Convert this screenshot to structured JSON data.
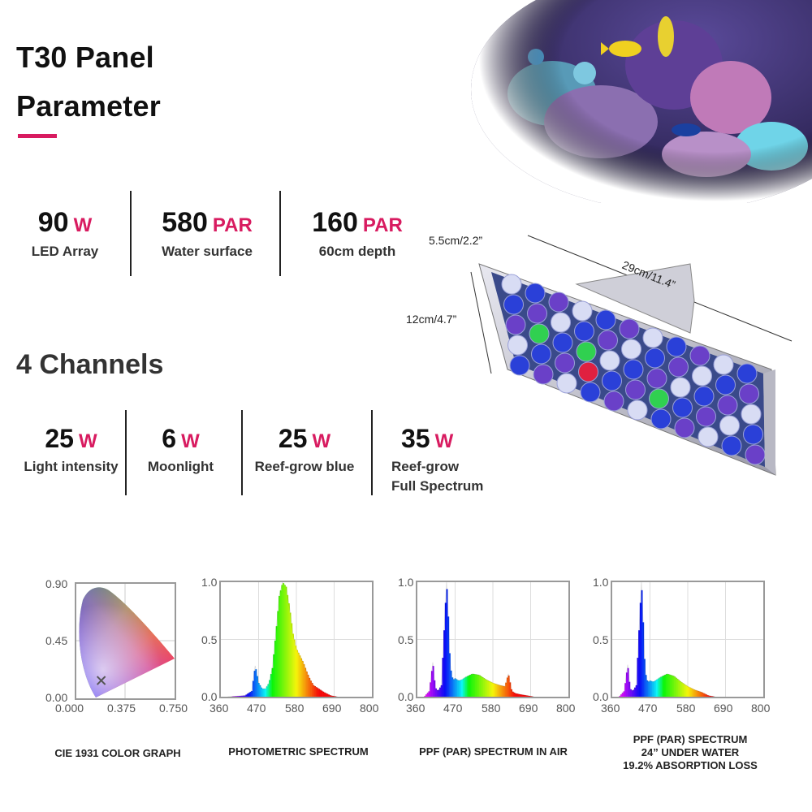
{
  "header": {
    "title_line1": "T30 Panel",
    "title_line2": "Parameter",
    "accent_color": "#d81b60"
  },
  "stats": [
    {
      "value": "90",
      "unit": "W",
      "label": "LED Array"
    },
    {
      "value": "580",
      "unit": "PAR",
      "label": "Water surface"
    },
    {
      "value": "160",
      "unit": "PAR",
      "label": "60cm depth"
    }
  ],
  "dimensions": {
    "width": "29cm/11.4”",
    "height": "12cm/4.7”",
    "depth": "5.5cm/2.2”"
  },
  "channels": {
    "title": "4 Channels",
    "items": [
      {
        "value": "25",
        "unit": "W",
        "label": "Light intensity"
      },
      {
        "value": "6",
        "unit": "W",
        "label": "Moonlight"
      },
      {
        "value": "25",
        "unit": "W",
        "label": "Reef-grow blue"
      },
      {
        "value": "35",
        "unit": "W",
        "label_line1": "Reef-grow",
        "label_line2": "Full Spectrum"
      }
    ]
  },
  "chart_data": [
    {
      "type": "area",
      "caption": "CIE 1931 COLOR GRAPH",
      "x_ticks": [
        "0.000",
        "0.375",
        "0.750"
      ],
      "y_ticks": [
        "0.90",
        "0.45",
        "0.00"
      ],
      "xlim": [
        0,
        0.75
      ],
      "ylim": [
        0,
        0.9
      ],
      "marker": {
        "x": 0.19,
        "y": 0.14
      }
    },
    {
      "type": "area",
      "caption": "PHOTOMETRIC SPECTRUM",
      "x_ticks": [
        "360",
        "470",
        "580",
        "690",
        "800"
      ],
      "y_ticks": [
        "1.0",
        "0.5",
        "0.0"
      ],
      "xlim": [
        360,
        800
      ],
      "ylim": [
        0,
        1
      ],
      "x": [
        380,
        430,
        450,
        460,
        470,
        480,
        490,
        500,
        510,
        520,
        530,
        540,
        550,
        560,
        570,
        580,
        590,
        600,
        610,
        620,
        630,
        640,
        650,
        660,
        680,
        700
      ],
      "y": [
        0,
        0.01,
        0.05,
        0.27,
        0.12,
        0.07,
        0.07,
        0.12,
        0.25,
        0.55,
        0.88,
        1.0,
        0.96,
        0.78,
        0.55,
        0.42,
        0.36,
        0.3,
        0.22,
        0.15,
        0.1,
        0.08,
        0.06,
        0.04,
        0.01,
        0
      ]
    },
    {
      "type": "area",
      "caption": "PPF (PAR) SPECTRUM IN AIR",
      "x_ticks": [
        "360",
        "470",
        "580",
        "690",
        "800"
      ],
      "y_ticks": [
        "1.0",
        "0.5",
        "0.0"
      ],
      "xlim": [
        360,
        800
      ],
      "ylim": [
        0,
        1
      ],
      "x": [
        380,
        395,
        405,
        412,
        420,
        430,
        440,
        445,
        450,
        455,
        460,
        465,
        470,
        480,
        490,
        500,
        520,
        540,
        560,
        580,
        600,
        615,
        625,
        635,
        645,
        660,
        680,
        700
      ],
      "y": [
        0,
        0.05,
        0.3,
        0.08,
        0.05,
        0.1,
        0.7,
        1.0,
        0.7,
        0.3,
        0.18,
        0.15,
        0.16,
        0.14,
        0.15,
        0.17,
        0.2,
        0.19,
        0.15,
        0.12,
        0.1,
        0.09,
        0.2,
        0.05,
        0.03,
        0.02,
        0.01,
        0
      ]
    },
    {
      "type": "area",
      "caption_line1": "PPF (PAR) SPECTRUM",
      "caption_line2": "24”  UNDER WATER",
      "caption_line3": "19.2% ABSORPTION LOSS",
      "x_ticks": [
        "360",
        "470",
        "580",
        "690",
        "800"
      ],
      "y_ticks": [
        "1.0",
        "0.5",
        "0.0"
      ],
      "xlim": [
        360,
        800
      ],
      "ylim": [
        0,
        1
      ],
      "x": [
        380,
        395,
        405,
        412,
        420,
        430,
        440,
        445,
        450,
        455,
        460,
        465,
        470,
        480,
        490,
        500,
        520,
        540,
        560,
        580,
        600,
        620,
        640,
        660
      ],
      "y": [
        0,
        0.05,
        0.28,
        0.07,
        0.05,
        0.1,
        0.7,
        1.0,
        0.65,
        0.25,
        0.15,
        0.13,
        0.14,
        0.13,
        0.15,
        0.17,
        0.2,
        0.18,
        0.13,
        0.09,
        0.06,
        0.04,
        0.01,
        0
      ]
    }
  ]
}
